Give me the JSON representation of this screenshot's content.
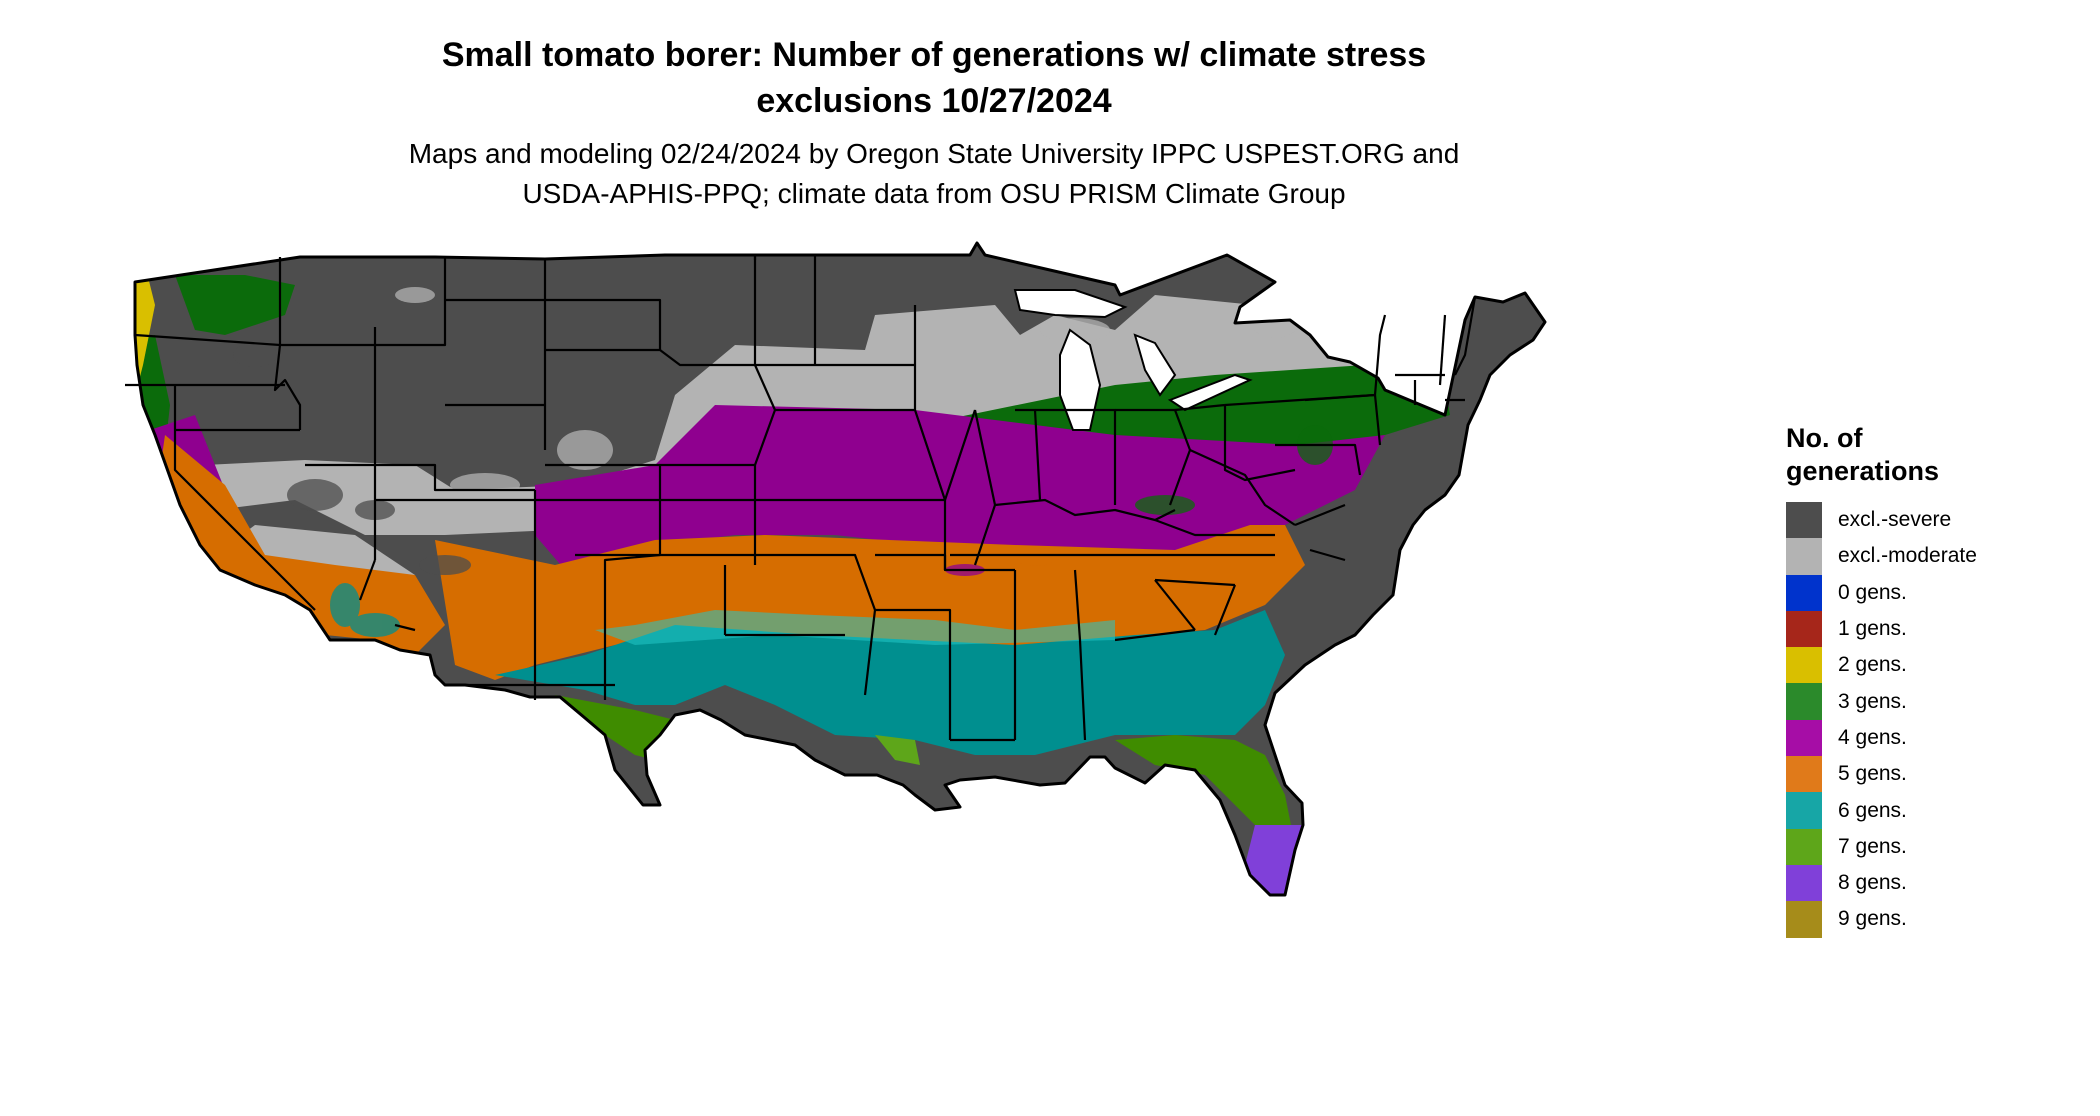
{
  "title": {
    "line1": "Small tomato borer: Number of generations w/ climate stress",
    "line2": "exclusions 10/27/2024"
  },
  "subtitle": {
    "line1": "Maps and modeling 02/24/2024 by Oregon State University IPPC USPEST.ORG and",
    "line2": "USDA-APHIS-PPQ; climate data from OSU PRISM Climate Group"
  },
  "legend": {
    "title_line1": "No. of",
    "title_line2": "generations",
    "items": [
      {
        "label": "excl.-severe",
        "color": "#4d4d4d"
      },
      {
        "label": "excl.-moderate",
        "color": "#b3b3b3"
      },
      {
        "label": "0 gens.",
        "color": "#0033cc"
      },
      {
        "label": "1 gens.",
        "color": "#a6261a"
      },
      {
        "label": "2 gens.",
        "color": "#d9bf00"
      },
      {
        "label": "3 gens.",
        "color": "#2b8a2b"
      },
      {
        "label": "4 gens.",
        "color": "#a60da6"
      },
      {
        "label": "5 gens.",
        "color": "#e07a1a"
      },
      {
        "label": "6 gens.",
        "color": "#17a6a6"
      },
      {
        "label": "7 gens.",
        "color": "#5ea61a"
      },
      {
        "label": "8 gens.",
        "color": "#8040d9"
      },
      {
        "label": "9 gens.",
        "color": "#a68c1a"
      }
    ]
  },
  "map_colors": {
    "severe": "#4d4d4d",
    "moderate": "#b3b3b3",
    "two_gens": "#d9bf00",
    "three_gens": "#0b6b0b",
    "four_gens": "#8f008f",
    "five_gens": "#d66d00",
    "six_gens": "#008f8f",
    "six_gens_light": "#22c9c9",
    "seven_gens": "#3f8c00",
    "eight_gens": "#8040d9",
    "boundary": "#000000"
  }
}
